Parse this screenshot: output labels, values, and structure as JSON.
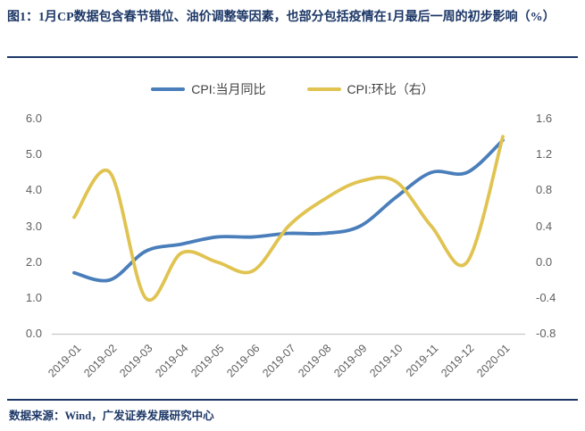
{
  "header": {
    "title": "图1：1月CP数据包含春节错位、油价调整等因素，也部分包括疫情在1月最后一周的初步影响（%）"
  },
  "chart_data": {
    "type": "line",
    "smooth": true,
    "grid": false,
    "legend_position": "top",
    "categories": [
      "2019-01",
      "2019-02",
      "2019-03",
      "2019-04",
      "2019-05",
      "2019-06",
      "2019-07",
      "2019-08",
      "2019-09",
      "2019-10",
      "2019-11",
      "2019-12",
      "2020-01"
    ],
    "series": [
      {
        "name": "CPI:当月同比",
        "axis": "left",
        "color": "#4a7ebb",
        "values": [
          1.7,
          1.5,
          2.3,
          2.5,
          2.7,
          2.7,
          2.8,
          2.8,
          3.0,
          3.8,
          4.5,
          4.5,
          5.4
        ]
      },
      {
        "name": "CPI:环比（右）",
        "axis": "right",
        "color": "#e0c350",
        "values": [
          0.5,
          1.0,
          -0.4,
          0.1,
          0.0,
          -0.1,
          0.4,
          0.7,
          0.9,
          0.9,
          0.4,
          0.0,
          1.4
        ]
      }
    ],
    "left_axis": {
      "min": 0,
      "max": 6,
      "ticks": [
        "6.0",
        "5.0",
        "4.0",
        "3.0",
        "2.0",
        "1.0",
        "0.0"
      ]
    },
    "right_axis": {
      "min": -0.8,
      "max": 1.6,
      "ticks": [
        "1.6",
        "1.2",
        "0.8",
        "0.4",
        "0.0",
        "-0.4",
        "-0.8"
      ]
    }
  },
  "footer": {
    "source": "数据来源：Wind，广发证券发展研究中心"
  },
  "colors": {
    "brand_navy": "#1c3766",
    "series_yoy_blue": "#4a7ebb",
    "series_mom_gold": "#e0c350",
    "axis_text_gray": "#5f5f5f",
    "axis_line_gray": "#c9c9c9"
  }
}
